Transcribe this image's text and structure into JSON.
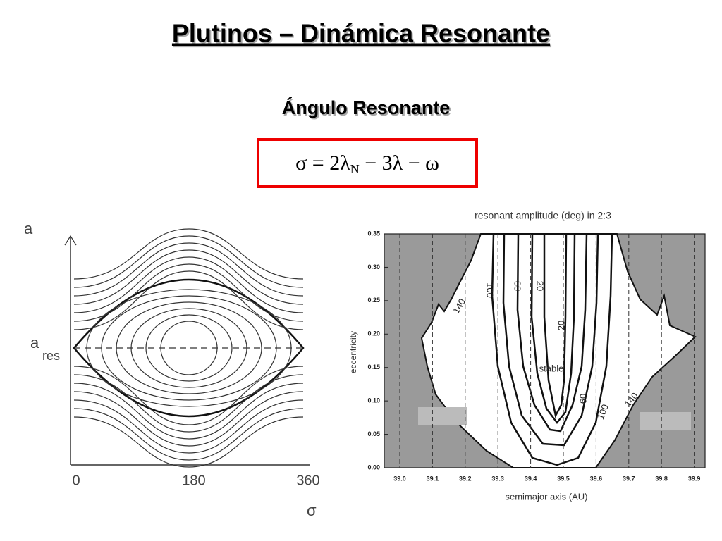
{
  "title": "Plutinos – Dinámica Resonante",
  "subtitle": "Ángulo Resonante",
  "formula": {
    "lhs": "σ = 2λ",
    "sub": "N",
    "rhs": " − 3λ − ω"
  },
  "left_figure": {
    "y_label": "a",
    "y_res_label": "a",
    "y_res_sub": "res",
    "x_ticks": [
      "0",
      "180",
      "360"
    ],
    "x_label": "σ"
  },
  "right_figure": {
    "title": "resonant amplitude (deg) in 2:3",
    "x_label": "semimajor axis (AU)",
    "y_label": "eccentricity",
    "x_ticks": [
      "39.0",
      "39.1",
      "39.2",
      "39.3",
      "39.4",
      "39.5",
      "39.6",
      "39.7",
      "39.8",
      "39.9"
    ],
    "y_ticks": [
      "0.35",
      "0.30",
      "0.25",
      "0.20",
      "0.15",
      "0.10",
      "0.05",
      "0.00"
    ],
    "contour_labels": [
      "140",
      "100",
      "60",
      "20",
      "20",
      "60",
      "100",
      "140"
    ],
    "region_label": "stable"
  }
}
